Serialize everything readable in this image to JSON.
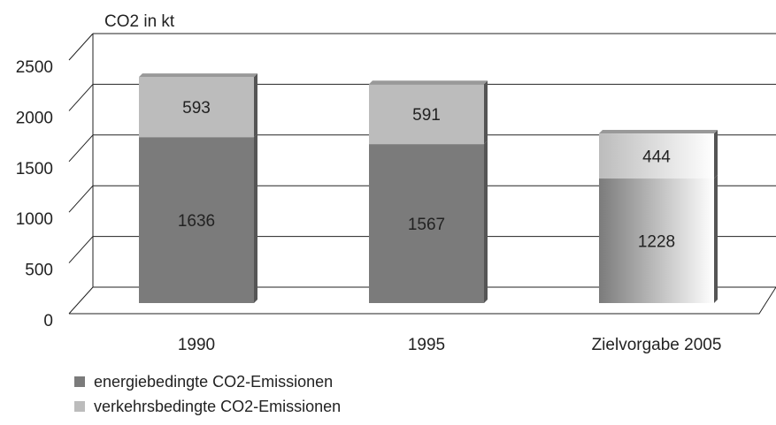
{
  "chart_data": {
    "type": "stacked-bar-3d",
    "y_axis_label": "CO2 in kt",
    "categories": [
      "1990",
      "1995",
      "Zielvorgabe 2005"
    ],
    "series": [
      {
        "name": "energiebedingte CO2-Emissionen",
        "color": "#7b7b7b",
        "values": [
          1636,
          1567,
          1228
        ]
      },
      {
        "name": "verkehrsbedingte CO2-Emissionen",
        "color": "#bcbcbc",
        "values": [
          593,
          591,
          444
        ]
      }
    ],
    "ylim": [
      0,
      2500
    ],
    "yticks": [
      0,
      500,
      1000,
      1500,
      2000,
      2500
    ],
    "grid": true
  }
}
